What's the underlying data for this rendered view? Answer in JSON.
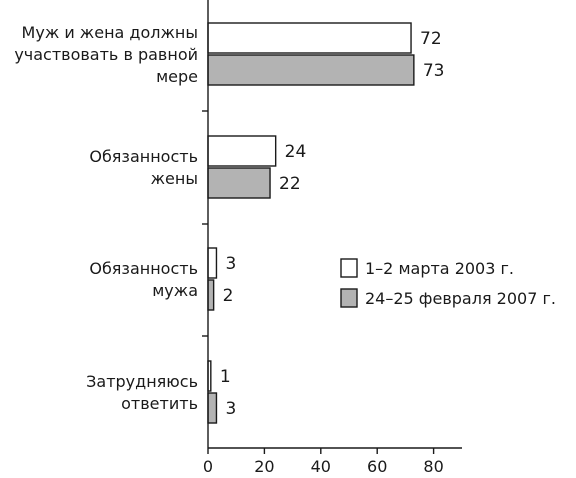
{
  "chart_data": {
    "type": "bar",
    "orientation": "horizontal",
    "categories": [
      [
        "Муж и жена должны",
        "участвовать в равной",
        "мере"
      ],
      [
        "Обязанность",
        "жены"
      ],
      [
        "Обязанность",
        "мужа"
      ],
      [
        "Затрудняюсь",
        "ответить"
      ]
    ],
    "series": [
      {
        "name": "1–2 марта 2003 г.",
        "values": [
          72,
          24,
          3,
          1
        ],
        "color": "#ffffff"
      },
      {
        "name": "24–25 февраля 2007 г.",
        "values": [
          73,
          22,
          2,
          3
        ],
        "color": "#b3b3b3"
      }
    ],
    "xlim": [
      0,
      90
    ],
    "xticks": [
      0,
      20,
      40,
      60,
      80
    ],
    "grid": false,
    "legend_position": "right"
  }
}
